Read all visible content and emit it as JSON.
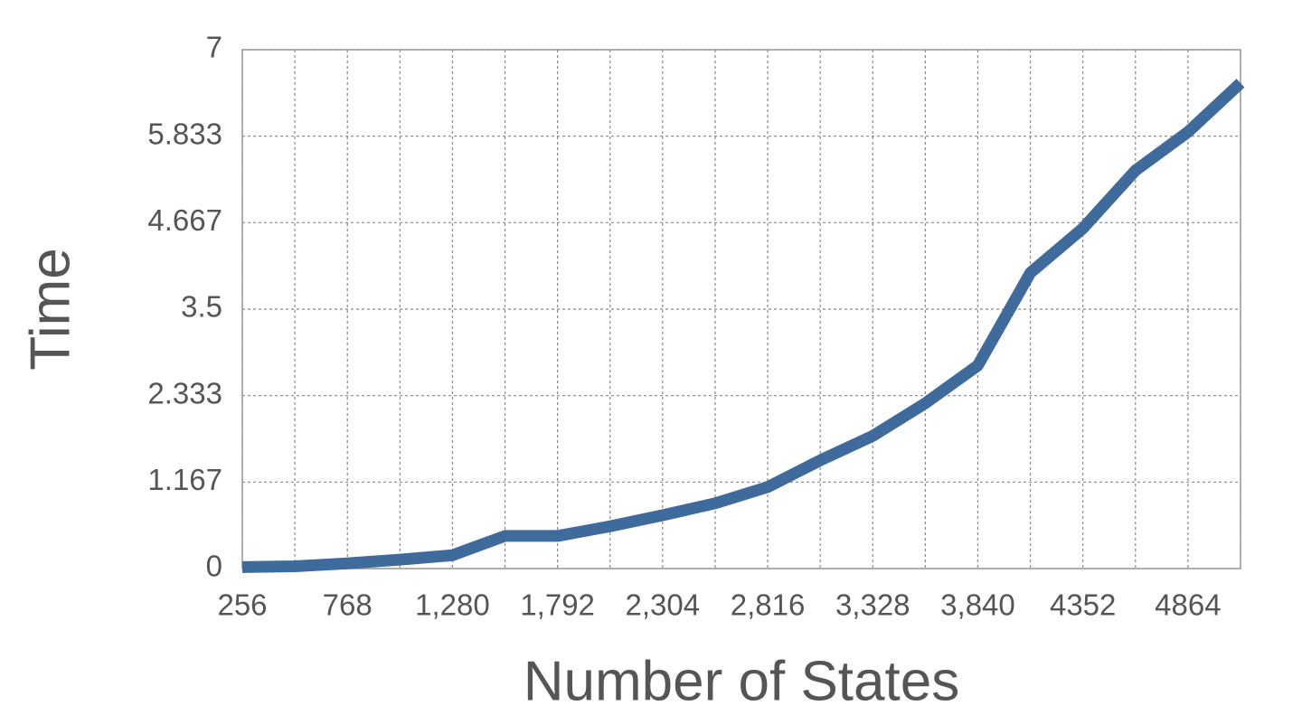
{
  "chart_data": {
    "type": "line",
    "x_label": "Number of States",
    "y_label": "Time",
    "categories": [
      "256",
      null,
      "768",
      null,
      "1,280",
      null,
      "1,792",
      null,
      "2,304",
      null,
      "2,816",
      null,
      "3,328",
      null,
      "3,840",
      null,
      "4352",
      null,
      "4864",
      null
    ],
    "series": [
      {
        "name": "Time",
        "color": "#3e6a9c",
        "values": [
          0.02,
          0.03,
          0.07,
          0.12,
          0.18,
          0.44,
          0.44,
          0.57,
          0.72,
          0.88,
          1.1,
          1.46,
          1.79,
          2.23,
          2.74,
          3.99,
          4.59,
          5.37,
          5.89,
          6.55
        ]
      }
    ],
    "ylim": [
      0,
      7
    ],
    "yticks": [
      0,
      1.167,
      2.333,
      3.5,
      4.667,
      5.833,
      7
    ],
    "grid": true
  }
}
